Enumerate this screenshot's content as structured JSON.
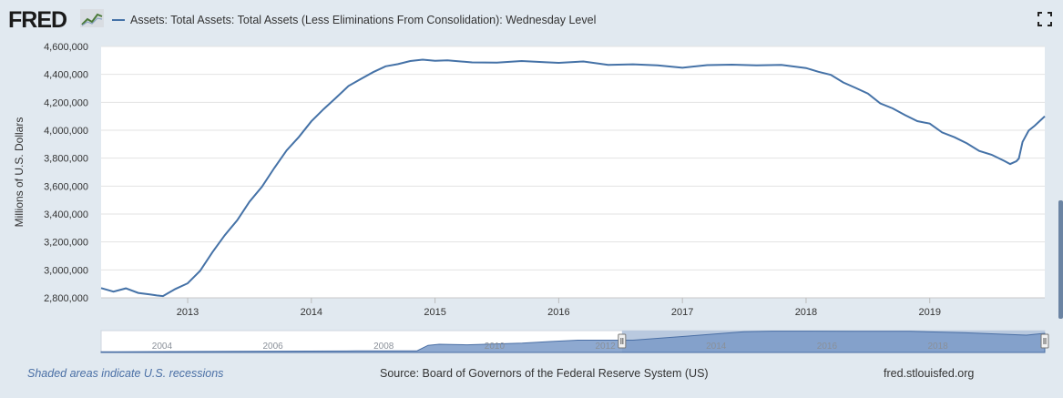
{
  "header": {
    "logo_text": "FRED",
    "series_title": "Assets: Total Assets: Total Assets (Less Eliminations From Consolidation): Wednesday Level",
    "icons": [
      "fred-graph-logo-icon",
      "fullscreen-icon"
    ]
  },
  "colors": {
    "series_line": "#4572a7",
    "plot_bg": "#ffffff",
    "page_bg": "#e1e9f0",
    "navigator_fill": "#7a9ac8",
    "navigator_selected": "#b9c9df"
  },
  "chart_data": {
    "type": "line",
    "title": "",
    "ylabel": "Millions of U.S. Dollars",
    "xlabel": "",
    "xlim": [
      2012.3,
      2019.93
    ],
    "ylim": [
      2800000,
      4600000
    ],
    "y_ticks": [
      2800000,
      3000000,
      3200000,
      3400000,
      3600000,
      3800000,
      4000000,
      4200000,
      4400000,
      4600000
    ],
    "y_tick_labels": [
      "2,800,000",
      "3,000,000",
      "3,200,000",
      "3,400,000",
      "3,600,000",
      "3,800,000",
      "4,000,000",
      "4,200,000",
      "4,400,000",
      "4,600,000"
    ],
    "x_ticks": [
      2013,
      2014,
      2015,
      2016,
      2017,
      2018,
      2019
    ],
    "x_tick_labels": [
      "2013",
      "2014",
      "2015",
      "2016",
      "2017",
      "2018",
      "2019"
    ],
    "grid": true,
    "series": [
      {
        "name": "Assets: Total Assets: Total Assets (Less Eliminations From Consolidation): Wednesday Level",
        "x": [
          2012.3,
          2012.4,
          2012.5,
          2012.6,
          2012.7,
          2012.75,
          2012.8,
          2012.9,
          2013.0,
          2013.1,
          2013.2,
          2013.3,
          2013.4,
          2013.5,
          2013.6,
          2013.7,
          2013.8,
          2013.9,
          2014.0,
          2014.1,
          2014.2,
          2014.3,
          2014.4,
          2014.5,
          2014.6,
          2014.7,
          2014.8,
          2014.9,
          2015.0,
          2015.1,
          2015.3,
          2015.5,
          2015.7,
          2015.9,
          2016.0,
          2016.2,
          2016.4,
          2016.6,
          2016.8,
          2017.0,
          2017.2,
          2017.4,
          2017.6,
          2017.8,
          2018.0,
          2018.1,
          2018.2,
          2018.3,
          2018.4,
          2018.5,
          2018.6,
          2018.7,
          2018.8,
          2018.9,
          2019.0,
          2019.1,
          2019.2,
          2019.3,
          2019.4,
          2019.5,
          2019.6,
          2019.65,
          2019.7,
          2019.72,
          2019.75,
          2019.8,
          2019.85,
          2019.93
        ],
        "values": [
          2870000,
          2850000,
          2860000,
          2840000,
          2825000,
          2810000,
          2820000,
          2860000,
          2900000,
          3000000,
          3120000,
          3250000,
          3360000,
          3480000,
          3600000,
          3730000,
          3850000,
          3960000,
          4060000,
          4150000,
          4240000,
          4310000,
          4370000,
          4420000,
          4450000,
          4480000,
          4495000,
          4500000,
          4505000,
          4495000,
          4485000,
          4490000,
          4488000,
          4490000,
          4485000,
          4485000,
          4475000,
          4470000,
          4460000,
          4455000,
          4460000,
          4470000,
          4470000,
          4460000,
          4450000,
          4420000,
          4390000,
          4350000,
          4300000,
          4260000,
          4200000,
          4150000,
          4110000,
          4070000,
          4040000,
          3990000,
          3950000,
          3900000,
          3860000,
          3820000,
          3780000,
          3765000,
          3770000,
          3800000,
          3920000,
          3990000,
          4040000,
          4100000
        ]
      }
    ],
    "navigator": {
      "x_tick_labels": [
        "2004",
        "2006",
        "2008",
        "2010",
        "2012",
        "2014",
        "2016",
        "2018"
      ],
      "x_ticks": [
        2004,
        2006,
        2008,
        2010,
        2012,
        2014,
        2016,
        2018
      ],
      "xlim": [
        2002.9,
        2019.93
      ],
      "ylim": [
        600000,
        4600000
      ],
      "selected_range": [
        2012.3,
        2019.93
      ],
      "x": [
        2002.9,
        2007.5,
        2008.6,
        2008.8,
        2009.0,
        2009.5,
        2010.5,
        2011.0,
        2011.5,
        2012.5,
        2013.5,
        2014.5,
        2015.0,
        2016.5,
        2017.5,
        2018.5,
        2019.6,
        2019.93
      ],
      "values": [
        720000,
        880000,
        900000,
        1900000,
        2100000,
        2000000,
        2300000,
        2600000,
        2850000,
        2850000,
        3600000,
        4400000,
        4500000,
        4480000,
        4460000,
        4200000,
        3770000,
        4100000
      ]
    }
  },
  "footer": {
    "recession_note": "Shaded areas indicate U.S. recessions",
    "source": "Source: Board of Governors of the Federal Reserve System (US)",
    "site_link": "fred.stlouisfed.org"
  }
}
